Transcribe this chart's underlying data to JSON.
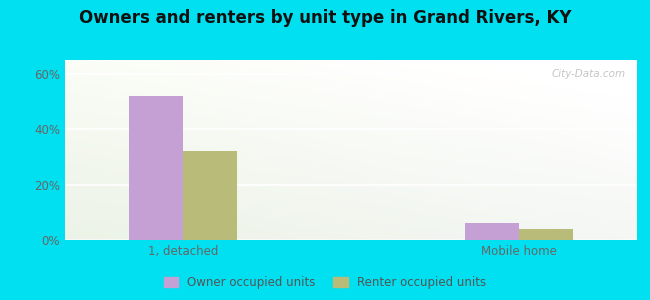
{
  "title": "Owners and renters by unit type in Grand Rivers, KY",
  "categories": [
    "1, detached",
    "Mobile home"
  ],
  "owner_values": [
    52,
    6
  ],
  "renter_values": [
    32,
    4
  ],
  "owner_color": "#c4a0d4",
  "renter_color": "#b8bc78",
  "ylim": [
    0,
    65
  ],
  "yticks": [
    0,
    20,
    40,
    60
  ],
  "ytick_labels": [
    "0%",
    "20%",
    "40%",
    "60%"
  ],
  "background_outer": "#00e0f0",
  "title_fontsize": 12,
  "legend_labels": [
    "Owner occupied units",
    "Renter occupied units"
  ],
  "watermark": "City-Data.com"
}
